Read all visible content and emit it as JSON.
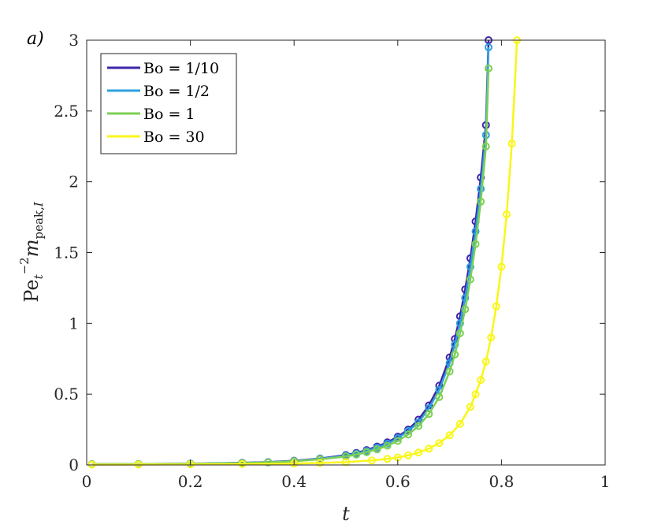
{
  "panel_label": "a)",
  "chart_data": {
    "type": "line",
    "xlabel": "t",
    "ylabel": "Pe_t^{-2} m_{peak,I}",
    "xlim": [
      0,
      1
    ],
    "ylim": [
      0,
      3
    ],
    "xticks": [
      0,
      0.2,
      0.4,
      0.6,
      0.8,
      1
    ],
    "xtick_labels": [
      "0",
      "0.2",
      "0.4",
      "0.6",
      "0.8",
      "1"
    ],
    "yticks": [
      0,
      0.5,
      1,
      1.5,
      2,
      2.5,
      3
    ],
    "ytick_labels": [
      "0",
      "0.5",
      "1",
      "1.5",
      "2",
      "2.5",
      "3"
    ],
    "grid": false,
    "legend_position": "top-left",
    "series": [
      {
        "name": "Bo = 1/10",
        "color": "#3e26a8",
        "x": [
          0.01,
          0.1,
          0.2,
          0.3,
          0.35,
          0.4,
          0.45,
          0.5,
          0.52,
          0.54,
          0.56,
          0.58,
          0.6,
          0.62,
          0.64,
          0.66,
          0.68,
          0.7,
          0.71,
          0.72,
          0.73,
          0.74,
          0.75,
          0.76,
          0.77,
          0.775
        ],
        "y": [
          0.005,
          0.006,
          0.009,
          0.015,
          0.02,
          0.03,
          0.045,
          0.07,
          0.085,
          0.105,
          0.13,
          0.16,
          0.2,
          0.25,
          0.32,
          0.42,
          0.56,
          0.76,
          0.89,
          1.05,
          1.24,
          1.46,
          1.72,
          2.03,
          2.4,
          3.0
        ]
      },
      {
        "name": "Bo = 1/2",
        "color": "#2e9fdf",
        "x": [
          0.01,
          0.1,
          0.2,
          0.3,
          0.35,
          0.4,
          0.45,
          0.5,
          0.52,
          0.54,
          0.56,
          0.58,
          0.6,
          0.62,
          0.64,
          0.66,
          0.68,
          0.7,
          0.71,
          0.72,
          0.73,
          0.74,
          0.75,
          0.76,
          0.77,
          0.775
        ],
        "y": [
          0.005,
          0.006,
          0.009,
          0.014,
          0.019,
          0.028,
          0.043,
          0.066,
          0.08,
          0.099,
          0.122,
          0.15,
          0.19,
          0.24,
          0.3,
          0.4,
          0.53,
          0.72,
          0.85,
          1.0,
          1.18,
          1.4,
          1.65,
          1.95,
          2.33,
          2.95
        ]
      },
      {
        "name": "Bo = 1",
        "color": "#7ccf54",
        "x": [
          0.01,
          0.1,
          0.2,
          0.3,
          0.35,
          0.4,
          0.45,
          0.5,
          0.52,
          0.54,
          0.56,
          0.58,
          0.6,
          0.62,
          0.64,
          0.66,
          0.68,
          0.7,
          0.71,
          0.72,
          0.73,
          0.74,
          0.75,
          0.76,
          0.77,
          0.775
        ],
        "y": [
          0.005,
          0.006,
          0.008,
          0.013,
          0.018,
          0.026,
          0.04,
          0.06,
          0.073,
          0.09,
          0.11,
          0.136,
          0.17,
          0.215,
          0.275,
          0.36,
          0.48,
          0.66,
          0.78,
          0.93,
          1.1,
          1.31,
          1.56,
          1.86,
          2.25,
          2.8
        ]
      },
      {
        "name": "Bo = 30",
        "color": "#f9f619",
        "x": [
          0.01,
          0.1,
          0.2,
          0.3,
          0.4,
          0.45,
          0.5,
          0.55,
          0.58,
          0.6,
          0.62,
          0.64,
          0.66,
          0.68,
          0.7,
          0.72,
          0.74,
          0.75,
          0.76,
          0.77,
          0.78,
          0.79,
          0.8,
          0.81,
          0.82,
          0.83
        ],
        "y": [
          0.002,
          0.003,
          0.004,
          0.006,
          0.01,
          0.014,
          0.02,
          0.032,
          0.043,
          0.053,
          0.068,
          0.088,
          0.115,
          0.155,
          0.21,
          0.29,
          0.41,
          0.5,
          0.6,
          0.73,
          0.9,
          1.12,
          1.4,
          1.77,
          2.27,
          3.0
        ]
      }
    ]
  }
}
